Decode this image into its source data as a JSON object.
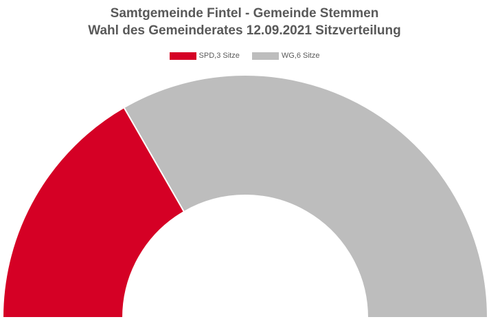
{
  "chart_data": {
    "type": "pie",
    "subtype": "semicircle-donut (seat distribution)",
    "title_lines": [
      "Samtgemeinde Fintel - Gemeinde Stemmen",
      "Wahl des Gemeinderates 12.09.2021 Sitzverteilung"
    ],
    "legend_position": "top-center",
    "series": [
      {
        "name": "SPD,3 Sitze",
        "party": "SPD",
        "seats": 3,
        "color": "#d50025"
      },
      {
        "name": "WG,6 Sitze",
        "party": "WG",
        "seats": 6,
        "color": "#bdbdbd"
      }
    ],
    "total_seats": 9
  }
}
